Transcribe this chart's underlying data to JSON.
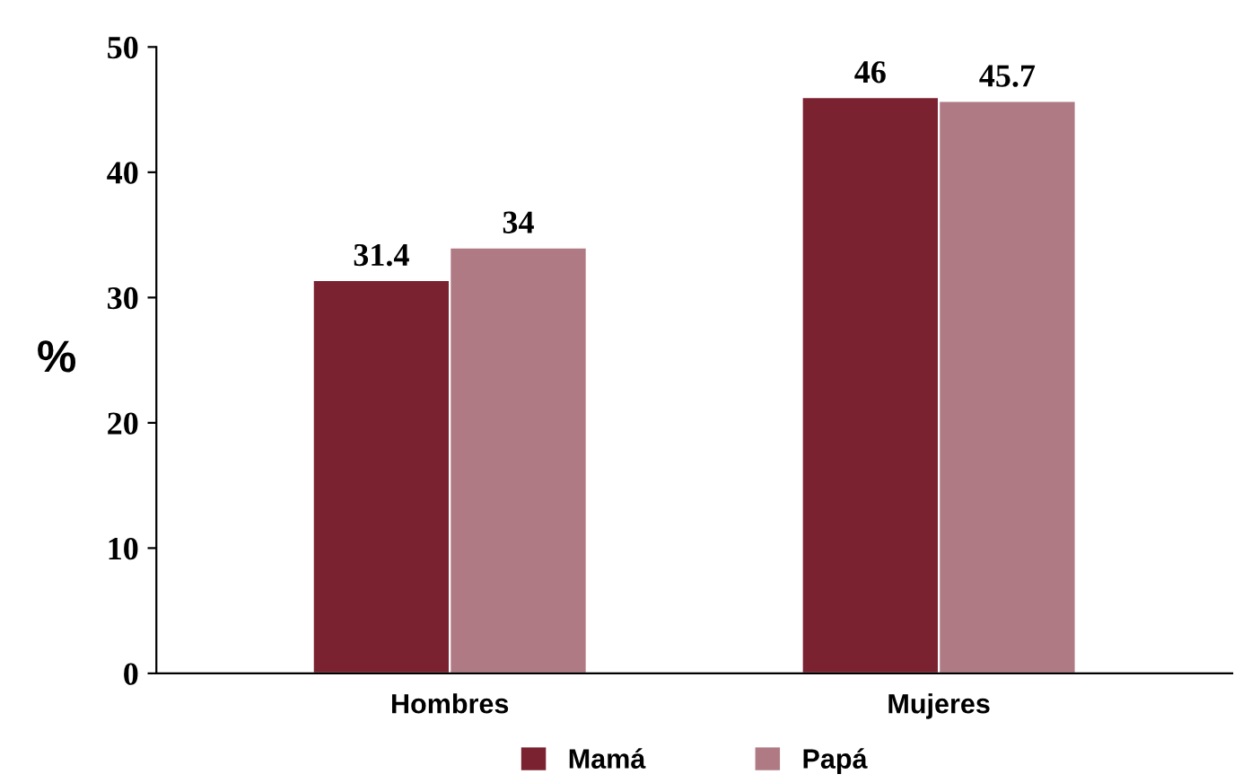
{
  "chart_data": {
    "type": "bar",
    "ylabel": "%",
    "categories": [
      "Hombres",
      "Mujeres"
    ],
    "series": [
      {
        "name": "Mamá",
        "color": "#7b2230",
        "values": [
          31.4,
          46
        ]
      },
      {
        "name": "Papá",
        "color": "#b07a84",
        "values": [
          34,
          45.7
        ]
      }
    ],
    "ylim": [
      0,
      50
    ],
    "yticks": [
      0,
      10,
      20,
      30,
      40,
      50
    ],
    "data_labels": true,
    "grid": false,
    "legend": "bottom"
  }
}
